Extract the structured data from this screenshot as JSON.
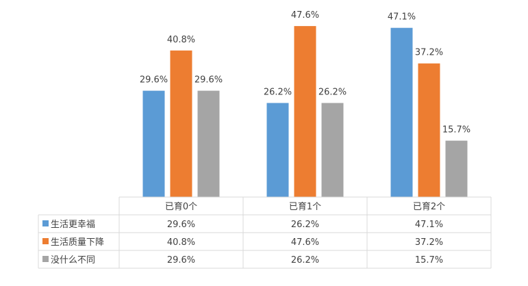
{
  "chart_data": {
    "type": "bar",
    "categories": [
      "已育0个",
      "已育1个",
      "已育2个"
    ],
    "series": [
      {
        "name": "生活更幸福",
        "values": [
          29.6,
          26.2,
          47.1
        ],
        "labels": [
          "29.6%",
          "26.2%",
          "47.1%"
        ],
        "color": "#5b9bd5"
      },
      {
        "name": "生活质量下降",
        "values": [
          40.8,
          47.6,
          37.2
        ],
        "labels": [
          "40.8%",
          "47.6%",
          "37.2%"
        ],
        "color": "#ed7d31"
      },
      {
        "name": "没什么不同",
        "values": [
          29.6,
          26.2,
          15.7
        ],
        "labels": [
          "29.6%",
          "26.2%",
          "15.7%"
        ],
        "color": "#a5a5a5"
      }
    ],
    "ylim": [
      0,
      50
    ],
    "legend": "data-table",
    "grid": false
  }
}
